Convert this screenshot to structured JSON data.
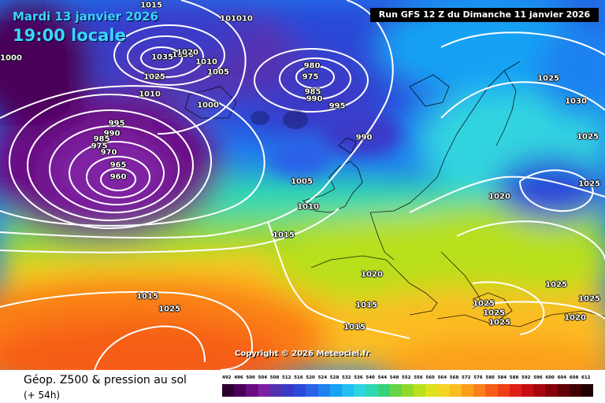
{
  "header": {
    "date": "Mardi 13 janvier 2026",
    "time": "19:00 locale",
    "run": "Run GFS 12 Z du Dimanche 11 janvier 2026"
  },
  "copyright": "Copyright © 2026 Meteociel.fr",
  "legend": {
    "title": "Géop. Z500 & pression au sol",
    "hours": "(+ 54h)",
    "scale_values": [
      "492",
      "496",
      "500",
      "504",
      "508",
      "512",
      "516",
      "520",
      "524",
      "528",
      "532",
      "536",
      "540",
      "544",
      "548",
      "552",
      "556",
      "560",
      "564",
      "568",
      "572",
      "576",
      "580",
      "584",
      "588",
      "592",
      "596",
      "600",
      "604",
      "608",
      "612"
    ],
    "scale_colors": [
      "#2b0030",
      "#4a0058",
      "#6a0b84",
      "#7f20a4",
      "#5533b0",
      "#3a3ac8",
      "#2c4ad8",
      "#2a62e8",
      "#1f82f0",
      "#17a2f4",
      "#20bff0",
      "#30d4e0",
      "#2ed8b2",
      "#35d27c",
      "#66d545",
      "#8ed92a",
      "#b8e01e",
      "#dfe21c",
      "#f3d420",
      "#fbbd22",
      "#fc9e1c",
      "#fa7f18",
      "#f65d18",
      "#ee3f17",
      "#de1f16",
      "#c80d12",
      "#a8060d",
      "#860009",
      "#610006",
      "#400004",
      "#200002"
    ]
  },
  "isobars": [
    {
      "text": "1015"
    },
    {
      "text": "101010"
    },
    {
      "text": "1000"
    },
    {
      "text": "1030"
    },
    {
      "text": "1020"
    },
    {
      "text": "1035"
    },
    {
      "text": "1010"
    },
    {
      "text": "1005"
    },
    {
      "text": "1025"
    },
    {
      "text": "1010"
    },
    {
      "text": "1000"
    },
    {
      "text": "980"
    },
    {
      "text": "975"
    },
    {
      "text": "985"
    },
    {
      "text": "990"
    },
    {
      "text": "995"
    },
    {
      "text": "995"
    },
    {
      "text": "990"
    },
    {
      "text": "985"
    },
    {
      "text": "975"
    },
    {
      "text": "970"
    },
    {
      "text": "965"
    },
    {
      "text": "960"
    },
    {
      "text": "990"
    },
    {
      "text": "1005"
    },
    {
      "text": "1010"
    },
    {
      "text": "1015"
    },
    {
      "text": "1020"
    },
    {
      "text": "1025"
    },
    {
      "text": "1015"
    },
    {
      "text": "1015"
    },
    {
      "text": "1015"
    },
    {
      "text": "1025"
    },
    {
      "text": "1030"
    },
    {
      "text": "1025"
    },
    {
      "text": "1025"
    },
    {
      "text": "1020"
    },
    {
      "text": "1025"
    },
    {
      "text": "1025"
    },
    {
      "text": "1025"
    },
    {
      "text": "1025"
    },
    {
      "text": "1025"
    },
    {
      "text": "1020"
    }
  ]
}
